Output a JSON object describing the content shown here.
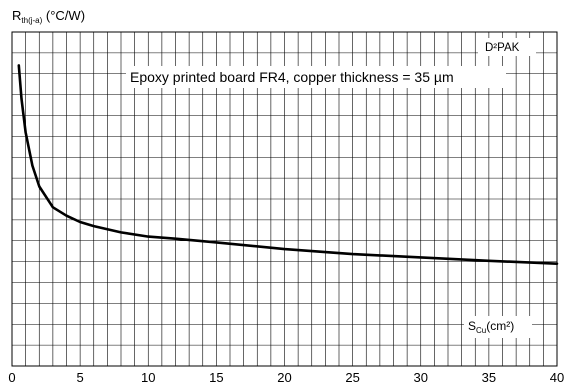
{
  "chart_data": {
    "type": "line",
    "ylabel_main": "R",
    "ylabel_sub": "th(j-a)",
    "ylabel_unit": " (°C/W)",
    "xlabel_main": "S",
    "xlabel_sub": "Cu",
    "xlabel_unit": "(cm²)",
    "package_label": "D²PAK",
    "annotation": "Epoxy printed board FR4, copper thickness = 35 µm",
    "xlim": [
      0,
      40
    ],
    "ylim": [
      0,
      80
    ],
    "x_ticks": [
      0,
      5,
      10,
      15,
      20,
      25,
      30,
      35,
      40
    ],
    "grid": true,
    "series": [
      {
        "color": "#000000",
        "x": [
          0.5,
          0.7,
          1,
          1.5,
          2,
          3,
          4,
          5,
          6,
          8,
          10,
          12,
          15,
          20,
          25,
          30,
          35,
          40
        ],
        "y": [
          72,
          64,
          56,
          48,
          43,
          38,
          36,
          34.5,
          33.5,
          32,
          31,
          30.5,
          29.6,
          28,
          26.8,
          26,
          25.2,
          24.5
        ]
      }
    ]
  }
}
